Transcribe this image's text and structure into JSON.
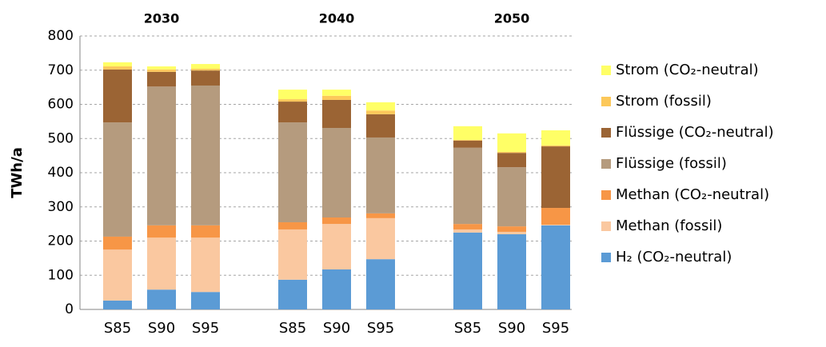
{
  "chart_data": {
    "type": "stacked-bar",
    "y_label": "TWh/a",
    "groups": [
      "2030",
      "2040",
      "2050"
    ],
    "categories": [
      "S85",
      "S90",
      "S95",
      "S85",
      "S90",
      "S95",
      "S85",
      "S90",
      "S95"
    ],
    "series": [
      {
        "name": "H₂ (CO₂-neutral)",
        "color": "#5b9bd5",
        "values": [
          26,
          58,
          51,
          87,
          117,
          147,
          225,
          220,
          246
        ]
      },
      {
        "name": "Methan (fossil)",
        "color": "#fac8a0",
        "values": [
          149,
          152,
          159,
          147,
          133,
          120,
          9,
          7,
          2
        ]
      },
      {
        "name": "Methan (CO₂-neutral)",
        "color": "#f79646",
        "values": [
          38,
          36,
          36,
          21,
          19,
          14,
          16,
          16,
          49
        ]
      },
      {
        "name": "Flüssige (fossil)",
        "color": "#b59b7e",
        "values": [
          334,
          406,
          409,
          292,
          262,
          222,
          223,
          173,
          0
        ]
      },
      {
        "name": "Flüssige (CO₂-neutral)",
        "color": "#9b6434",
        "values": [
          155,
          43,
          44,
          61,
          82,
          68,
          21,
          42,
          180
        ]
      },
      {
        "name": "Strom (fossil)",
        "color": "#fcc85a",
        "values": [
          9,
          7,
          5,
          7,
          12,
          11,
          2,
          3,
          3
        ]
      },
      {
        "name": "Strom (CO₂-neutral)",
        "color": "#ffff66",
        "values": [
          12,
          9,
          14,
          28,
          18,
          24,
          40,
          54,
          44
        ]
      }
    ],
    "ylim": [
      0,
      800
    ],
    "yticks": [
      0,
      100,
      200,
      300,
      400,
      500,
      600,
      700,
      800
    ],
    "grid": true,
    "legend": "right"
  }
}
